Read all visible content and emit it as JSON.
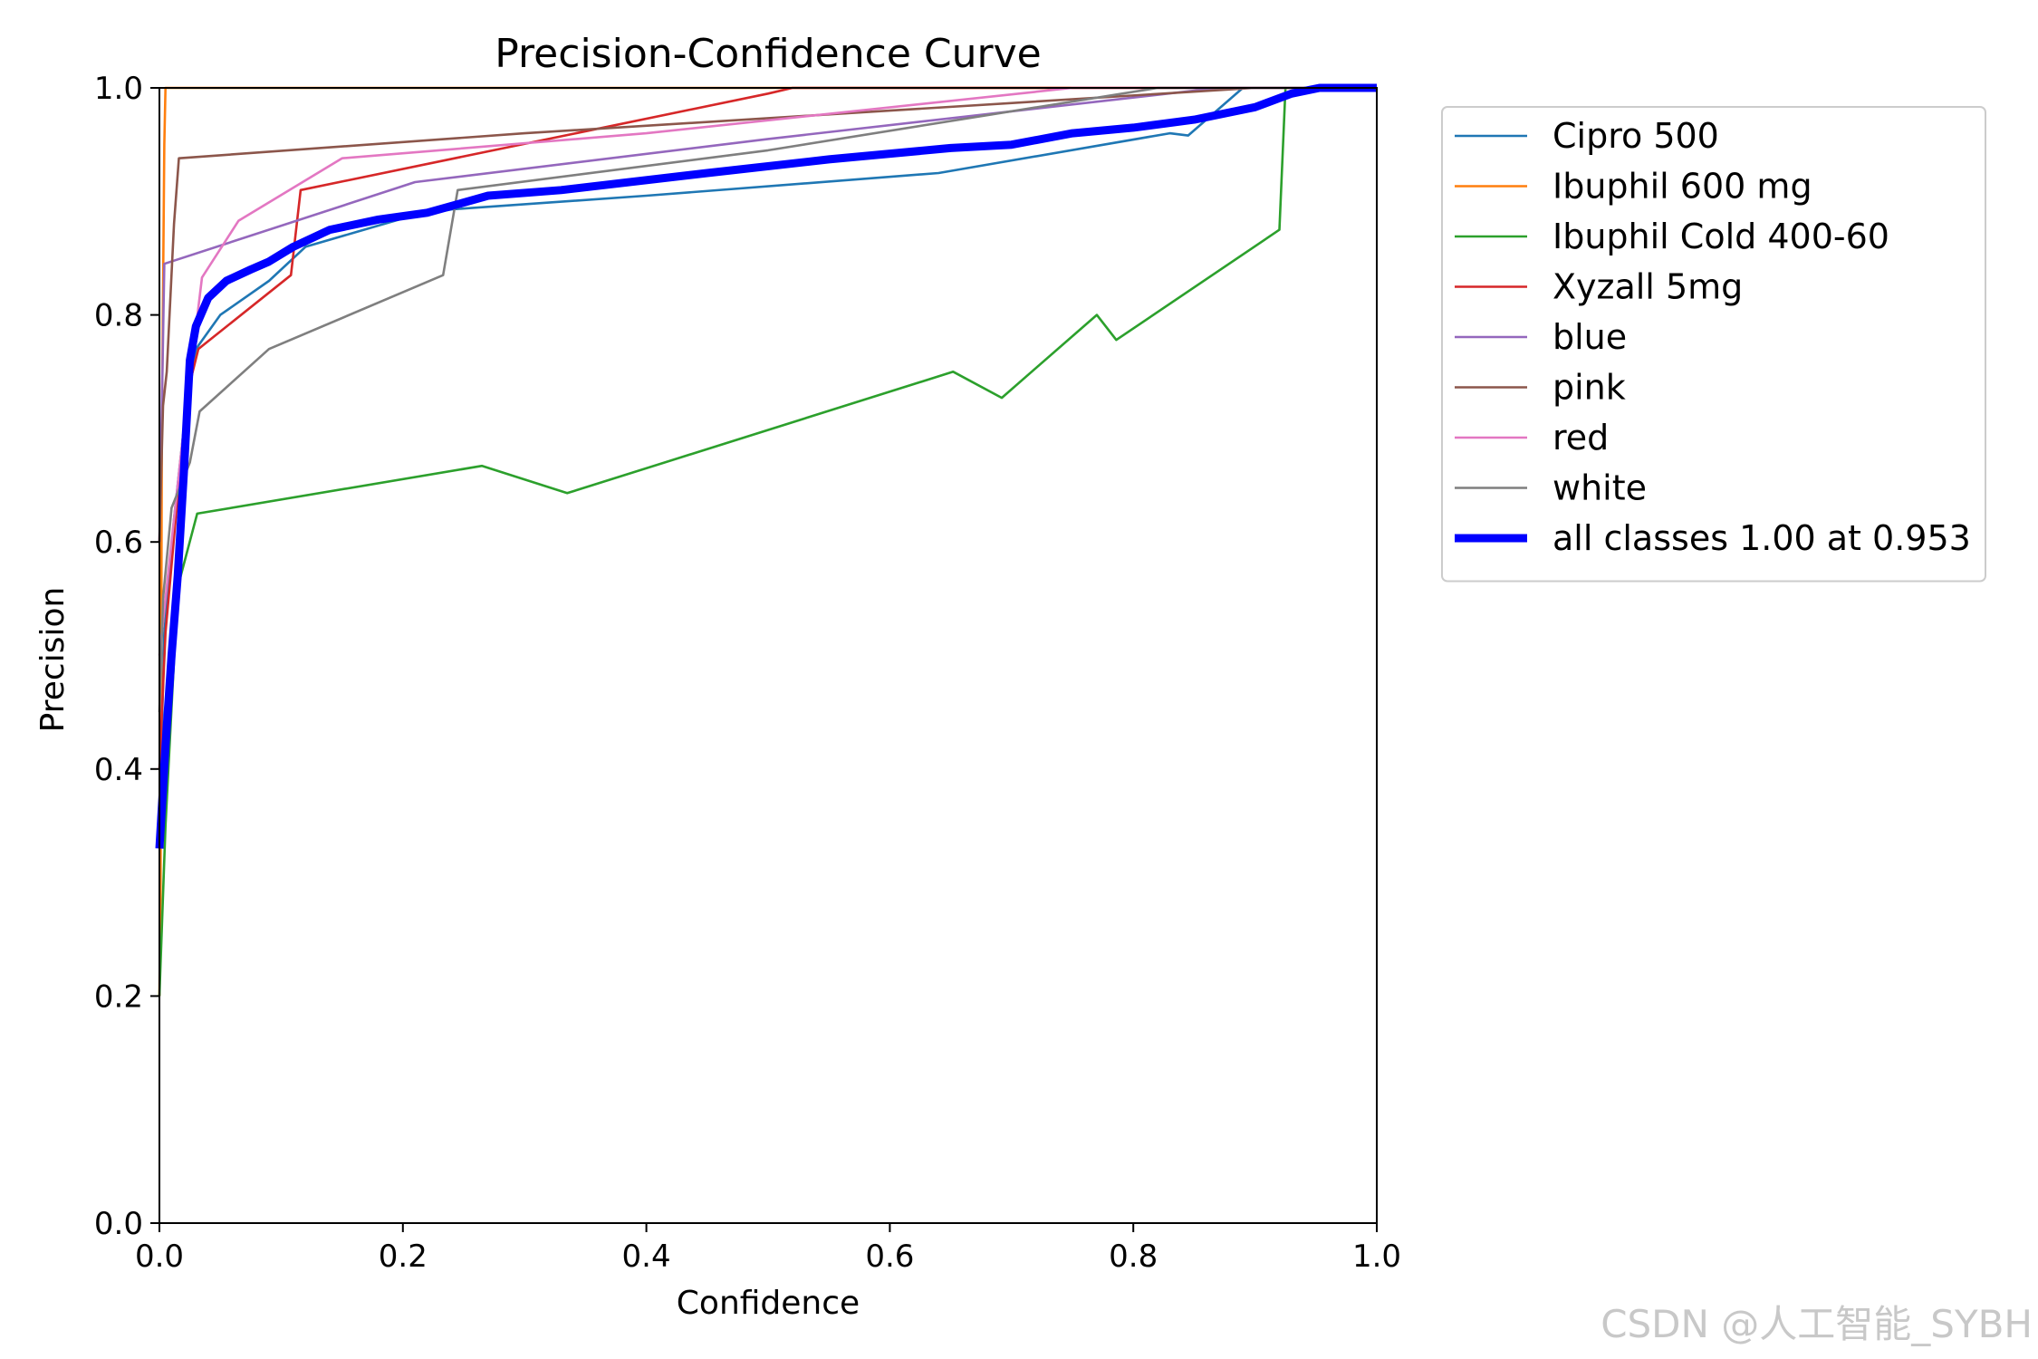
{
  "chart_data": {
    "type": "line",
    "title": "Precision-Confidence Curve",
    "xlabel": "Confidence",
    "ylabel": "Precision",
    "xlim": [
      0,
      1
    ],
    "ylim": [
      0,
      1
    ],
    "xticks": [
      "0.0",
      "0.2",
      "0.4",
      "0.6",
      "0.8",
      "1.0"
    ],
    "yticks": [
      "0.0",
      "0.2",
      "0.4",
      "0.6",
      "0.8",
      "1.0"
    ],
    "grid": false,
    "legend_position": "outside-right-top",
    "series": [
      {
        "name": "Cipro 500",
        "color": "#1f77b4",
        "bold": false,
        "x": [
          0.0,
          0.004,
          0.012,
          0.02,
          0.03,
          0.05,
          0.09,
          0.12,
          0.2,
          0.24,
          0.4,
          0.64,
          0.83,
          0.845,
          0.89,
          0.95,
          1.0
        ],
        "y": [
          0.35,
          0.52,
          0.62,
          0.7,
          0.77,
          0.8,
          0.83,
          0.86,
          0.885,
          0.893,
          0.905,
          0.925,
          0.96,
          0.958,
          1.0,
          1.0,
          1.0
        ]
      },
      {
        "name": "Ibuphil 600 mg",
        "color": "#ff7f0e",
        "bold": false,
        "x": [
          0.0,
          0.001,
          0.002,
          0.004,
          0.005,
          1.0
        ],
        "y": [
          0.2,
          0.3,
          0.7,
          0.95,
          1.0,
          1.0
        ]
      },
      {
        "name": "Ibuphil Cold 400-60",
        "color": "#2ca02c",
        "bold": false,
        "x": [
          0.0,
          0.005,
          0.015,
          0.031,
          0.265,
          0.335,
          0.652,
          0.692,
          0.77,
          0.786,
          0.92,
          0.925,
          1.0
        ],
        "y": [
          0.2,
          0.35,
          0.56,
          0.625,
          0.667,
          0.643,
          0.75,
          0.727,
          0.8,
          0.778,
          0.875,
          1.0,
          1.0
        ]
      },
      {
        "name": "Xyzall 5mg",
        "color": "#d62728",
        "bold": false,
        "x": [
          0.0,
          0.005,
          0.015,
          0.025,
          0.032,
          0.108,
          0.116,
          0.5,
          0.52,
          1.0
        ],
        "y": [
          0.4,
          0.52,
          0.64,
          0.74,
          0.77,
          0.835,
          0.91,
          0.995,
          1.0,
          1.0
        ]
      },
      {
        "name": "blue",
        "color": "#9467bd",
        "bold": false,
        "x": [
          0.0,
          0.002,
          0.004,
          0.21,
          0.5,
          0.87,
          1.0
        ],
        "y": [
          0.6,
          0.72,
          0.845,
          0.917,
          0.955,
          1.0,
          1.0
        ]
      },
      {
        "name": "pink",
        "color": "#8c564b",
        "bold": false,
        "x": [
          0.0,
          0.003,
          0.006,
          0.012,
          0.016,
          0.3,
          0.6,
          0.9,
          1.0
        ],
        "y": [
          0.6,
          0.72,
          0.75,
          0.88,
          0.938,
          0.96,
          0.98,
          1.0,
          1.0
        ]
      },
      {
        "name": "red",
        "color": "#e377c2",
        "bold": false,
        "x": [
          0.0,
          0.01,
          0.02,
          0.035,
          0.065,
          0.15,
          0.4,
          0.75,
          0.8,
          1.0
        ],
        "y": [
          0.5,
          0.6,
          0.7,
          0.833,
          0.883,
          0.938,
          0.96,
          1.0,
          1.0,
          1.0
        ]
      },
      {
        "name": "white",
        "color": "#7f7f7f",
        "bold": false,
        "x": [
          0.0,
          0.003,
          0.01,
          0.025,
          0.033,
          0.09,
          0.233,
          0.245,
          0.5,
          0.82,
          1.0
        ],
        "y": [
          0.45,
          0.55,
          0.63,
          0.67,
          0.715,
          0.77,
          0.835,
          0.91,
          0.945,
          1.0,
          1.0
        ]
      },
      {
        "name": "all classes 1.00 at 0.953",
        "color": "#0000ff",
        "bold": true,
        "x": [
          0.0,
          0.005,
          0.01,
          0.015,
          0.02,
          0.025,
          0.03,
          0.04,
          0.055,
          0.075,
          0.09,
          0.11,
          0.14,
          0.18,
          0.22,
          0.27,
          0.33,
          0.45,
          0.55,
          0.65,
          0.7,
          0.75,
          0.8,
          0.85,
          0.9,
          0.93,
          0.953,
          1.0
        ],
        "y": [
          0.33,
          0.42,
          0.5,
          0.57,
          0.66,
          0.76,
          0.79,
          0.815,
          0.83,
          0.84,
          0.847,
          0.86,
          0.875,
          0.884,
          0.89,
          0.905,
          0.91,
          0.925,
          0.937,
          0.947,
          0.95,
          0.96,
          0.965,
          0.972,
          0.983,
          0.995,
          1.0,
          1.0
        ]
      }
    ]
  },
  "watermark": "CSDN @人工智能_SYBH"
}
